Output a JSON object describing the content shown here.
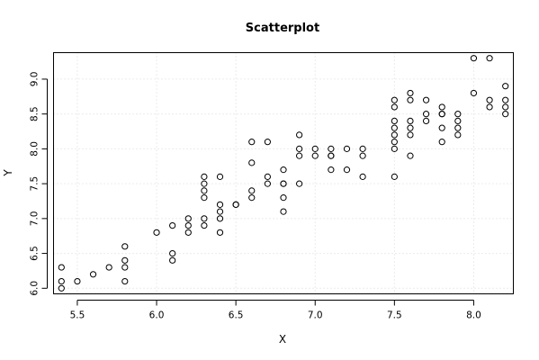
{
  "chart_data": {
    "type": "scatter",
    "title": "Scatterplot",
    "xlabel": "X",
    "ylabel": "Y",
    "xlim": [
      5.35,
      8.25
    ],
    "ylim": [
      5.92,
      9.38
    ],
    "xticks": [
      5.5,
      6.0,
      6.5,
      7.0,
      7.5,
      8.0
    ],
    "xtick_labels": [
      "5.5",
      "6.0",
      "6.5",
      "7.0",
      "7.5",
      "8.0"
    ],
    "yticks": [
      6.0,
      6.5,
      7.0,
      7.5,
      8.0,
      8.5,
      9.0
    ],
    "ytick_labels": [
      "6.0",
      "6.5",
      "7.0",
      "7.5",
      "8.0",
      "8.5",
      "9.0"
    ],
    "grid": true,
    "legend": "none",
    "points": [
      {
        "x": 5.4,
        "y": 6.3
      },
      {
        "x": 5.4,
        "y": 6.1
      },
      {
        "x": 5.4,
        "y": 6.0
      },
      {
        "x": 5.5,
        "y": 6.1
      },
      {
        "x": 5.6,
        "y": 6.2
      },
      {
        "x": 5.7,
        "y": 6.3
      },
      {
        "x": 5.8,
        "y": 6.6
      },
      {
        "x": 5.8,
        "y": 6.4
      },
      {
        "x": 5.8,
        "y": 6.3
      },
      {
        "x": 5.8,
        "y": 6.1
      },
      {
        "x": 6.0,
        "y": 6.8
      },
      {
        "x": 6.1,
        "y": 6.9
      },
      {
        "x": 6.1,
        "y": 6.5
      },
      {
        "x": 6.1,
        "y": 6.4
      },
      {
        "x": 6.2,
        "y": 7.0
      },
      {
        "x": 6.2,
        "y": 6.9
      },
      {
        "x": 6.2,
        "y": 6.8
      },
      {
        "x": 6.3,
        "y": 7.6
      },
      {
        "x": 6.3,
        "y": 7.5
      },
      {
        "x": 6.3,
        "y": 7.4
      },
      {
        "x": 6.3,
        "y": 7.3
      },
      {
        "x": 6.3,
        "y": 7.0
      },
      {
        "x": 6.3,
        "y": 6.9
      },
      {
        "x": 6.4,
        "y": 7.6
      },
      {
        "x": 6.4,
        "y": 7.2
      },
      {
        "x": 6.4,
        "y": 7.1
      },
      {
        "x": 6.4,
        "y": 7.0
      },
      {
        "x": 6.4,
        "y": 6.8
      },
      {
        "x": 6.5,
        "y": 7.2
      },
      {
        "x": 6.5,
        "y": 7.2
      },
      {
        "x": 6.6,
        "y": 8.1
      },
      {
        "x": 6.6,
        "y": 7.8
      },
      {
        "x": 6.6,
        "y": 7.4
      },
      {
        "x": 6.6,
        "y": 7.3
      },
      {
        "x": 6.7,
        "y": 8.1
      },
      {
        "x": 6.7,
        "y": 7.6
      },
      {
        "x": 6.7,
        "y": 7.5
      },
      {
        "x": 6.8,
        "y": 7.7
      },
      {
        "x": 6.8,
        "y": 7.5
      },
      {
        "x": 6.8,
        "y": 7.5
      },
      {
        "x": 6.8,
        "y": 7.3
      },
      {
        "x": 6.8,
        "y": 7.1
      },
      {
        "x": 6.9,
        "y": 8.2
      },
      {
        "x": 6.9,
        "y": 8.0
      },
      {
        "x": 6.9,
        "y": 7.9
      },
      {
        "x": 6.9,
        "y": 7.5
      },
      {
        "x": 7.0,
        "y": 8.0
      },
      {
        "x": 7.0,
        "y": 7.9
      },
      {
        "x": 7.1,
        "y": 8.0
      },
      {
        "x": 7.1,
        "y": 7.9
      },
      {
        "x": 7.1,
        "y": 7.9
      },
      {
        "x": 7.1,
        "y": 7.7
      },
      {
        "x": 7.2,
        "y": 8.0
      },
      {
        "x": 7.2,
        "y": 7.7
      },
      {
        "x": 7.3,
        "y": 8.0
      },
      {
        "x": 7.3,
        "y": 7.9
      },
      {
        "x": 7.3,
        "y": 7.6
      },
      {
        "x": 7.5,
        "y": 8.7
      },
      {
        "x": 7.5,
        "y": 8.6
      },
      {
        "x": 7.5,
        "y": 8.4
      },
      {
        "x": 7.5,
        "y": 8.3
      },
      {
        "x": 7.5,
        "y": 8.2
      },
      {
        "x": 7.5,
        "y": 8.1
      },
      {
        "x": 7.5,
        "y": 8.0
      },
      {
        "x": 7.5,
        "y": 7.6
      },
      {
        "x": 7.6,
        "y": 8.8
      },
      {
        "x": 7.6,
        "y": 8.7
      },
      {
        "x": 7.6,
        "y": 8.4
      },
      {
        "x": 7.6,
        "y": 8.3
      },
      {
        "x": 7.6,
        "y": 8.2
      },
      {
        "x": 7.6,
        "y": 7.9
      },
      {
        "x": 7.7,
        "y": 8.7
      },
      {
        "x": 7.7,
        "y": 8.5
      },
      {
        "x": 7.7,
        "y": 8.4
      },
      {
        "x": 7.8,
        "y": 8.6
      },
      {
        "x": 7.8,
        "y": 8.5
      },
      {
        "x": 7.8,
        "y": 8.5
      },
      {
        "x": 7.8,
        "y": 8.3
      },
      {
        "x": 7.8,
        "y": 8.1
      },
      {
        "x": 7.9,
        "y": 8.5
      },
      {
        "x": 7.9,
        "y": 8.4
      },
      {
        "x": 7.9,
        "y": 8.3
      },
      {
        "x": 7.9,
        "y": 8.2
      },
      {
        "x": 8.0,
        "y": 9.3
      },
      {
        "x": 8.0,
        "y": 8.8
      },
      {
        "x": 8.1,
        "y": 9.3
      },
      {
        "x": 8.1,
        "y": 8.7
      },
      {
        "x": 8.1,
        "y": 8.6
      },
      {
        "x": 8.2,
        "y": 8.9
      },
      {
        "x": 8.2,
        "y": 8.7
      },
      {
        "x": 8.2,
        "y": 8.6
      },
      {
        "x": 8.2,
        "y": 8.5
      }
    ]
  }
}
